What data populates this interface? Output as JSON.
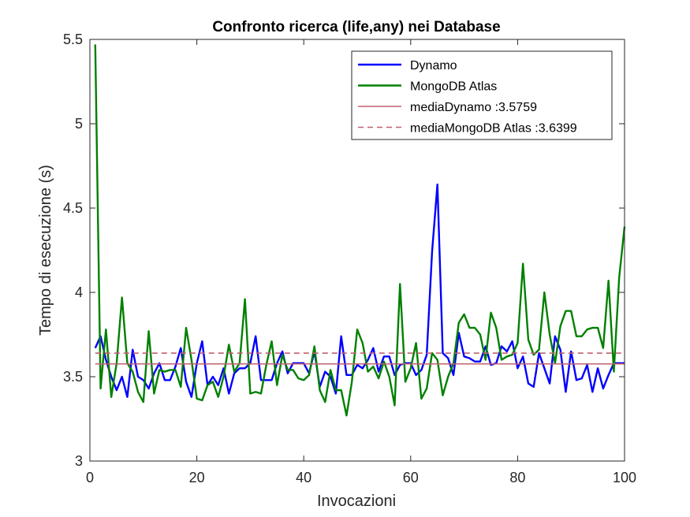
{
  "chart_data": {
    "type": "line",
    "title": "Confronto ricerca (life,any) nei Database",
    "xlabel": "Invocazioni",
    "ylabel": "Tempo di esecuzione (s)",
    "xlim": [
      0,
      100
    ],
    "ylim": [
      3,
      5.5
    ],
    "xticks": [
      0,
      20,
      40,
      60,
      80,
      100
    ],
    "yticks": [
      3,
      3.5,
      4,
      4.5,
      5,
      5.5
    ],
    "ytick_labels": [
      "3",
      "3.5",
      "4",
      "4.5",
      "5",
      "5.5"
    ],
    "grid": false,
    "legend_position": "top-right",
    "series": [
      {
        "name": "Dynamo",
        "color": "#0000ff",
        "style": "solid",
        "x": [
          1,
          2,
          3,
          4,
          5,
          6,
          7,
          8,
          9,
          10,
          11,
          12,
          13,
          14,
          15,
          16,
          17,
          18,
          19,
          20,
          21,
          22,
          23,
          24,
          25,
          26,
          27,
          28,
          29,
          30,
          31,
          32,
          33,
          34,
          35,
          36,
          37,
          38,
          39,
          40,
          41,
          42,
          43,
          44,
          45,
          46,
          47,
          48,
          49,
          50,
          51,
          52,
          53,
          54,
          55,
          56,
          57,
          58,
          59,
          60,
          61,
          62,
          63,
          64,
          65,
          66,
          67,
          68,
          69,
          70,
          71,
          72,
          73,
          74,
          75,
          76,
          77,
          78,
          79,
          80,
          81,
          82,
          83,
          84,
          85,
          86,
          87,
          88,
          89,
          90,
          91,
          92,
          93,
          94,
          95,
          96,
          97,
          98,
          99,
          100
        ],
        "values": [
          3.67,
          3.74,
          3.6,
          3.5,
          3.42,
          3.5,
          3.38,
          3.66,
          3.5,
          3.48,
          3.43,
          3.52,
          3.58,
          3.48,
          3.48,
          3.56,
          3.67,
          3.47,
          3.38,
          3.58,
          3.71,
          3.45,
          3.5,
          3.45,
          3.55,
          3.4,
          3.52,
          3.55,
          3.55,
          3.58,
          3.74,
          3.48,
          3.48,
          3.48,
          3.58,
          3.65,
          3.52,
          3.58,
          3.58,
          3.58,
          3.52,
          3.65,
          3.44,
          3.53,
          3.5,
          3.4,
          3.74,
          3.51,
          3.51,
          3.57,
          3.55,
          3.6,
          3.67,
          3.53,
          3.62,
          3.62,
          3.51,
          3.57,
          3.58,
          3.58,
          3.51,
          3.54,
          3.63,
          4.24,
          4.64,
          3.64,
          3.61,
          3.51,
          3.76,
          3.62,
          3.61,
          3.59,
          3.59,
          3.68,
          3.57,
          3.58,
          3.68,
          3.65,
          3.71,
          3.55,
          3.62,
          3.46,
          3.44,
          3.64,
          3.55,
          3.46,
          3.74,
          3.66,
          3.41,
          3.65,
          3.48,
          3.49,
          3.57,
          3.41,
          3.55,
          3.43,
          3.51,
          3.58,
          3.58,
          3.58
        ]
      },
      {
        "name": "MongoDB Atlas",
        "color": "#008000",
        "style": "solid",
        "x": [
          1,
          2,
          3,
          4,
          5,
          6,
          7,
          8,
          9,
          10,
          11,
          12,
          13,
          14,
          15,
          16,
          17,
          18,
          19,
          20,
          21,
          22,
          23,
          24,
          25,
          26,
          27,
          28,
          29,
          30,
          31,
          32,
          33,
          34,
          35,
          36,
          37,
          38,
          39,
          40,
          41,
          42,
          43,
          44,
          45,
          46,
          47,
          48,
          49,
          50,
          51,
          52,
          53,
          54,
          55,
          56,
          57,
          58,
          59,
          60,
          61,
          62,
          63,
          64,
          65,
          66,
          67,
          68,
          69,
          70,
          71,
          72,
          73,
          74,
          75,
          76,
          77,
          78,
          79,
          80,
          81,
          82,
          83,
          84,
          85,
          86,
          87,
          88,
          89,
          90,
          91,
          92,
          93,
          94,
          95,
          96,
          97,
          98,
          99,
          100
        ],
        "values": [
          5.47,
          3.43,
          3.78,
          3.38,
          3.58,
          3.97,
          3.58,
          3.53,
          3.41,
          3.35,
          3.77,
          3.4,
          3.54,
          3.53,
          3.54,
          3.54,
          3.44,
          3.79,
          3.6,
          3.37,
          3.36,
          3.45,
          3.47,
          3.38,
          3.5,
          3.69,
          3.53,
          3.58,
          3.96,
          3.4,
          3.41,
          3.4,
          3.57,
          3.71,
          3.45,
          3.63,
          3.54,
          3.54,
          3.49,
          3.48,
          3.51,
          3.68,
          3.42,
          3.35,
          3.54,
          3.42,
          3.42,
          3.27,
          3.47,
          3.78,
          3.7,
          3.53,
          3.56,
          3.49,
          3.59,
          3.5,
          3.33,
          4.05,
          3.47,
          3.55,
          3.7,
          3.37,
          3.43,
          3.64,
          3.6,
          3.39,
          3.5,
          3.58,
          3.82,
          3.87,
          3.79,
          3.79,
          3.75,
          3.6,
          3.88,
          3.79,
          3.6,
          3.62,
          3.63,
          3.7,
          4.17,
          3.72,
          3.63,
          3.66,
          4.0,
          3.75,
          3.58,
          3.8,
          3.89,
          3.89,
          3.74,
          3.74,
          3.78,
          3.79,
          3.79,
          3.67,
          4.07,
          3.53,
          4.09,
          4.39
        ]
      },
      {
        "name": "mediaDynamo :3.5759",
        "color": "#c06070",
        "style": "solid",
        "x": [
          1,
          100
        ],
        "values": [
          3.5759,
          3.5759
        ]
      },
      {
        "name": "mediaMongoDB Atlas :3.6399",
        "color": "#c06070",
        "style": "dashed",
        "x": [
          1,
          100
        ],
        "values": [
          3.6399,
          3.6399
        ]
      }
    ]
  }
}
